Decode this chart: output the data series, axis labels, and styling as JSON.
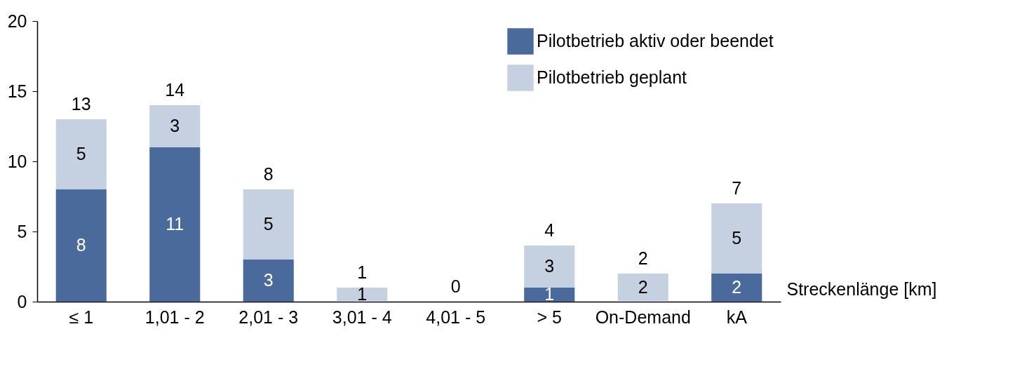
{
  "chart_data": {
    "type": "bar",
    "stacked": true,
    "xlabel": "Streckenlänge [km]",
    "categories": [
      "≤ 1",
      "1,01 - 2",
      "2,01 - 3",
      "3,01 - 4",
      "4,01 - 5",
      "> 5",
      "On-Demand",
      "kA"
    ],
    "series": [
      {
        "name": "Pilotbetrieb aktiv oder beendet",
        "color": "#4a6a9b",
        "values": [
          8,
          11,
          3,
          0,
          0,
          1,
          0,
          2
        ],
        "value_labels": [
          "8",
          "11",
          "3",
          null,
          null,
          "1",
          null,
          "2"
        ]
      },
      {
        "name": "Pilotbetrieb geplant",
        "color": "#c5d0e0",
        "values": [
          5,
          3,
          5,
          1,
          0,
          3,
          2,
          5
        ],
        "value_labels": [
          "5",
          "3",
          "5",
          "1",
          null,
          "3",
          "2",
          "5"
        ]
      }
    ],
    "totals": [
      "13",
      "14",
      "8",
      "1",
      "0",
      "4",
      "2",
      "7"
    ],
    "ylim": [
      0,
      20
    ],
    "yticks": [
      0,
      5,
      10,
      15,
      20
    ],
    "grid": false,
    "legend": "top right"
  }
}
